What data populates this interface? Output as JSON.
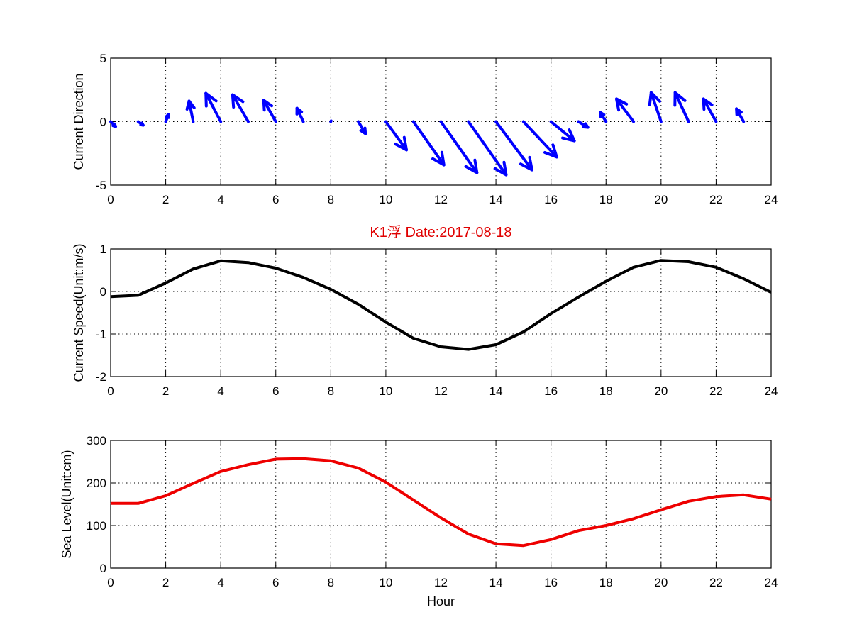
{
  "chart_data": [
    {
      "type": "quiver",
      "ylabel": "Current Direction",
      "xlabel": "",
      "xlim": [
        0,
        24
      ],
      "ylim": [
        -5,
        5
      ],
      "xticks": [
        "0",
        "2",
        "4",
        "6",
        "8",
        "10",
        "12",
        "14",
        "16",
        "18",
        "20",
        "22",
        "24"
      ],
      "yticks": [
        "-5",
        "0",
        "5"
      ],
      "ytick_values": [
        -5,
        0,
        5
      ],
      "grid": true,
      "color": "#0000ff",
      "x": [
        0,
        1,
        2,
        3,
        4,
        5,
        6,
        7,
        8,
        9,
        10,
        11,
        12,
        13,
        14,
        15,
        16,
        17,
        18,
        19,
        20,
        21,
        22,
        23
      ],
      "u": [
        0.18,
        0.18,
        0.1,
        -0.15,
        -0.54,
        -0.57,
        -0.44,
        -0.23,
        0.01,
        0.26,
        0.75,
        1.11,
        1.31,
        1.37,
        1.31,
        1.21,
        0.85,
        0.34,
        -0.21,
        -0.62,
        -0.36,
        -0.49,
        -0.46,
        -0.26
      ],
      "v": [
        -0.39,
        -0.28,
        0.56,
        1.62,
        2.23,
        2.12,
        1.68,
        1.06,
        0.06,
        -0.95,
        -2.23,
        -3.41,
        -4.02,
        -4.19,
        -3.8,
        -2.79,
        -1.51,
        -0.45,
        0.73,
        1.79,
        2.29,
        2.29,
        1.79,
        1.01
      ]
    },
    {
      "type": "line",
      "title": "K1浮    Date:2017-08-18",
      "ylabel": "Current Speed(Unit:m/s)",
      "xlabel": "",
      "xlim": [
        0,
        24
      ],
      "ylim": [
        -2,
        1
      ],
      "xticks": [
        "0",
        "2",
        "4",
        "6",
        "8",
        "10",
        "12",
        "14",
        "16",
        "18",
        "20",
        "22",
        "24"
      ],
      "yticks": [
        "-2",
        "-1",
        "0",
        "1"
      ],
      "ytick_values": [
        -2,
        -1,
        0,
        1
      ],
      "grid": true,
      "color": "#000000",
      "x": [
        0,
        1,
        2,
        3,
        4,
        5,
        6,
        7,
        8,
        9,
        10,
        11,
        12,
        13,
        14,
        15,
        16,
        17,
        18,
        19,
        20,
        21,
        22,
        23,
        24
      ],
      "y": [
        -0.12,
        -0.09,
        0.2,
        0.53,
        0.72,
        0.68,
        0.55,
        0.33,
        0.05,
        -0.3,
        -0.72,
        -1.1,
        -1.3,
        -1.36,
        -1.25,
        -0.95,
        -0.52,
        -0.13,
        0.24,
        0.57,
        0.73,
        0.7,
        0.57,
        0.3,
        -0.02
      ]
    },
    {
      "type": "line",
      "ylabel": "Sea Level(Unit:cm)",
      "xlabel": "Hour",
      "xlim": [
        0,
        24
      ],
      "ylim": [
        0,
        300
      ],
      "xticks": [
        "0",
        "2",
        "4",
        "6",
        "8",
        "10",
        "12",
        "14",
        "16",
        "18",
        "20",
        "22",
        "24"
      ],
      "yticks": [
        "0",
        "100",
        "200",
        "300"
      ],
      "ytick_values": [
        0,
        100,
        200,
        300
      ],
      "grid": true,
      "color": "#ee0000",
      "x": [
        0,
        1,
        2,
        3,
        4,
        5,
        6,
        7,
        8,
        9,
        10,
        11,
        12,
        13,
        14,
        15,
        16,
        17,
        18,
        19,
        20,
        21,
        22,
        23,
        24
      ],
      "y": [
        152,
        152,
        170,
        199,
        227,
        243,
        256,
        257,
        252,
        235,
        202,
        160,
        118,
        80,
        57,
        53,
        67,
        88,
        100,
        116,
        137,
        157,
        168,
        172,
        162
      ]
    }
  ]
}
